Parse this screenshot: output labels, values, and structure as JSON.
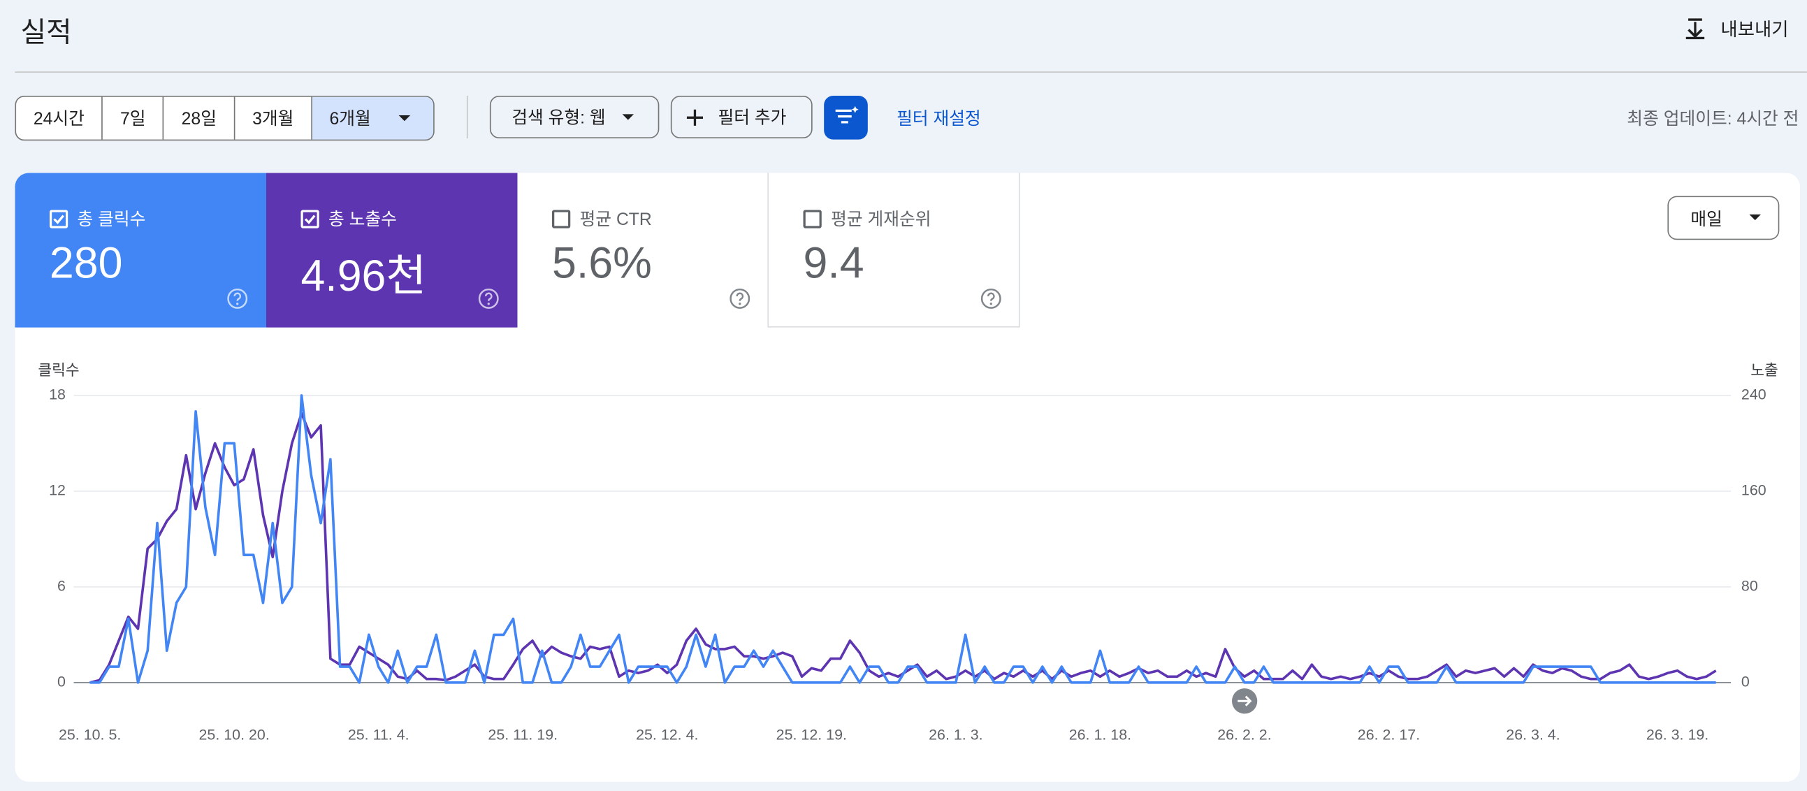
{
  "header": {
    "title": "실적",
    "export": "내보내기"
  },
  "toolbar": {
    "ranges": [
      "24시간",
      "7일",
      "28일",
      "3개월",
      "6개월"
    ],
    "search_type": "검색 유형: 웹",
    "add_filter": "필터 추가",
    "reset_filter": "필터 재설정",
    "last_update": "최종 업데이트: 4시간 전"
  },
  "metrics": [
    {
      "label": "총 클릭수",
      "value": "280"
    },
    {
      "label": "총 노출수",
      "value": "4.96천"
    },
    {
      "label": "평균 CTR",
      "value": "5.6%"
    },
    {
      "label": "평균 게재순위",
      "value": "9.4"
    }
  ],
  "granularity": "매일",
  "chart_data": {
    "type": "line",
    "categories": [
      "25. 10. 5.",
      null,
      null,
      null,
      null,
      null,
      null,
      null,
      null,
      null,
      null,
      null,
      null,
      null,
      null,
      "25. 10. 20.",
      null,
      null,
      null,
      null,
      null,
      null,
      null,
      null,
      null,
      null,
      null,
      null,
      null,
      null,
      "25. 11. 4.",
      null,
      null,
      null,
      null,
      null,
      null,
      null,
      null,
      null,
      null,
      null,
      null,
      null,
      null,
      "25. 11. 19.",
      null,
      null,
      null,
      null,
      null,
      null,
      null,
      null,
      null,
      null,
      null,
      null,
      null,
      null,
      "25. 12. 4.",
      null,
      null,
      null,
      null,
      null,
      null,
      null,
      null,
      null,
      null,
      null,
      null,
      null,
      null,
      "25. 12. 19.",
      null,
      null,
      null,
      null,
      null,
      null,
      null,
      null,
      null,
      null,
      null,
      null,
      null,
      null,
      "26. 1. 3.",
      null,
      null,
      null,
      null,
      null,
      null,
      null,
      null,
      null,
      null,
      null,
      null,
      null,
      null,
      "26. 1. 18.",
      null,
      null,
      null,
      null,
      null,
      null,
      null,
      null,
      null,
      null,
      null,
      null,
      null,
      null,
      "26. 2. 2.",
      null,
      null,
      null,
      null,
      null,
      null,
      null,
      null,
      null,
      null,
      null,
      null,
      null,
      null,
      "26. 2. 17.",
      null,
      null,
      null,
      null,
      null,
      null,
      null,
      null,
      null,
      null,
      null,
      null,
      null,
      null,
      "26. 3. 4.",
      null,
      null,
      null,
      null,
      null,
      null,
      null,
      null,
      null,
      null,
      null,
      null,
      null,
      null,
      "26. 3. 19.",
      null,
      null,
      null,
      null
    ],
    "series": [
      {
        "name": "클릭수",
        "color": "#4285f4",
        "values": [
          0,
          0,
          1,
          1,
          4,
          0,
          2,
          10,
          2,
          5,
          6,
          17,
          11,
          8,
          15,
          15,
          8,
          8,
          5,
          10,
          5,
          6,
          18,
          13,
          10,
          14,
          1,
          1,
          0,
          3,
          1,
          0,
          2,
          0,
          1,
          1,
          3,
          0,
          0,
          0,
          2,
          0,
          3,
          3,
          4,
          0,
          0,
          2,
          0,
          0,
          1,
          3,
          1,
          1,
          2,
          3,
          0,
          1,
          1,
          1,
          1,
          0,
          1,
          3,
          1,
          3,
          0,
          1,
          1,
          2,
          1,
          2,
          1,
          0,
          0,
          0,
          0,
          0,
          0,
          1,
          0,
          1,
          1,
          0,
          0,
          1,
          1,
          0,
          0,
          0,
          0,
          3,
          0,
          1,
          0,
          0,
          1,
          1,
          0,
          1,
          0,
          1,
          0,
          0,
          0,
          2,
          0,
          0,
          0,
          1,
          0,
          0,
          0,
          0,
          0,
          1,
          0,
          0,
          0,
          1,
          0,
          0,
          1,
          0,
          0,
          0,
          0,
          0,
          0,
          0,
          0,
          0,
          0,
          1,
          0,
          1,
          1,
          0,
          0,
          0,
          0,
          1,
          0,
          0,
          0,
          0,
          0,
          0,
          0,
          0,
          1,
          1,
          1,
          1,
          1,
          1,
          1,
          0,
          0,
          0,
          0,
          0,
          0,
          0,
          0,
          0,
          0,
          0,
          0,
          0
        ]
      },
      {
        "name": "노출",
        "color": "#5e35b1",
        "axis": "y2",
        "values": [
          0,
          2,
          15,
          35,
          55,
          45,
          112,
          120,
          135,
          145,
          190,
          145,
          175,
          200,
          180,
          165,
          170,
          195,
          140,
          105,
          160,
          200,
          225,
          205,
          215,
          20,
          15,
          15,
          30,
          25,
          20,
          15,
          5,
          3,
          10,
          3,
          3,
          2,
          5,
          10,
          15,
          5,
          3,
          3,
          15,
          28,
          35,
          22,
          30,
          25,
          22,
          20,
          30,
          28,
          30,
          5,
          10,
          8,
          10,
          15,
          8,
          15,
          35,
          45,
          32,
          28,
          28,
          30,
          22,
          22,
          20,
          22,
          25,
          22,
          5,
          12,
          10,
          20,
          20,
          35,
          25,
          10,
          5,
          8,
          5,
          10,
          15,
          5,
          10,
          3,
          5,
          10,
          5,
          10,
          3,
          8,
          5,
          10,
          5,
          10,
          3,
          10,
          5,
          8,
          10,
          5,
          10,
          5,
          8,
          12,
          8,
          10,
          5,
          5,
          10,
          5,
          8,
          5,
          28,
          12,
          5,
          10,
          3,
          3,
          3,
          10,
          3,
          15,
          5,
          3,
          5,
          3,
          5,
          8,
          5,
          10,
          5,
          3,
          3,
          5,
          10,
          15,
          5,
          10,
          8,
          10,
          12,
          5,
          12,
          5,
          15,
          10,
          8,
          12,
          10,
          5,
          3,
          3,
          8,
          10,
          15,
          5,
          3,
          5,
          8,
          10,
          5,
          3,
          5,
          10
        ]
      }
    ],
    "ylim": [
      0,
      18
    ],
    "yticks": [
      0,
      6,
      12,
      18
    ],
    "y2lim": [
      0,
      240
    ],
    "y2ticks": [
      0,
      80,
      160,
      240
    ],
    "grid": true
  }
}
